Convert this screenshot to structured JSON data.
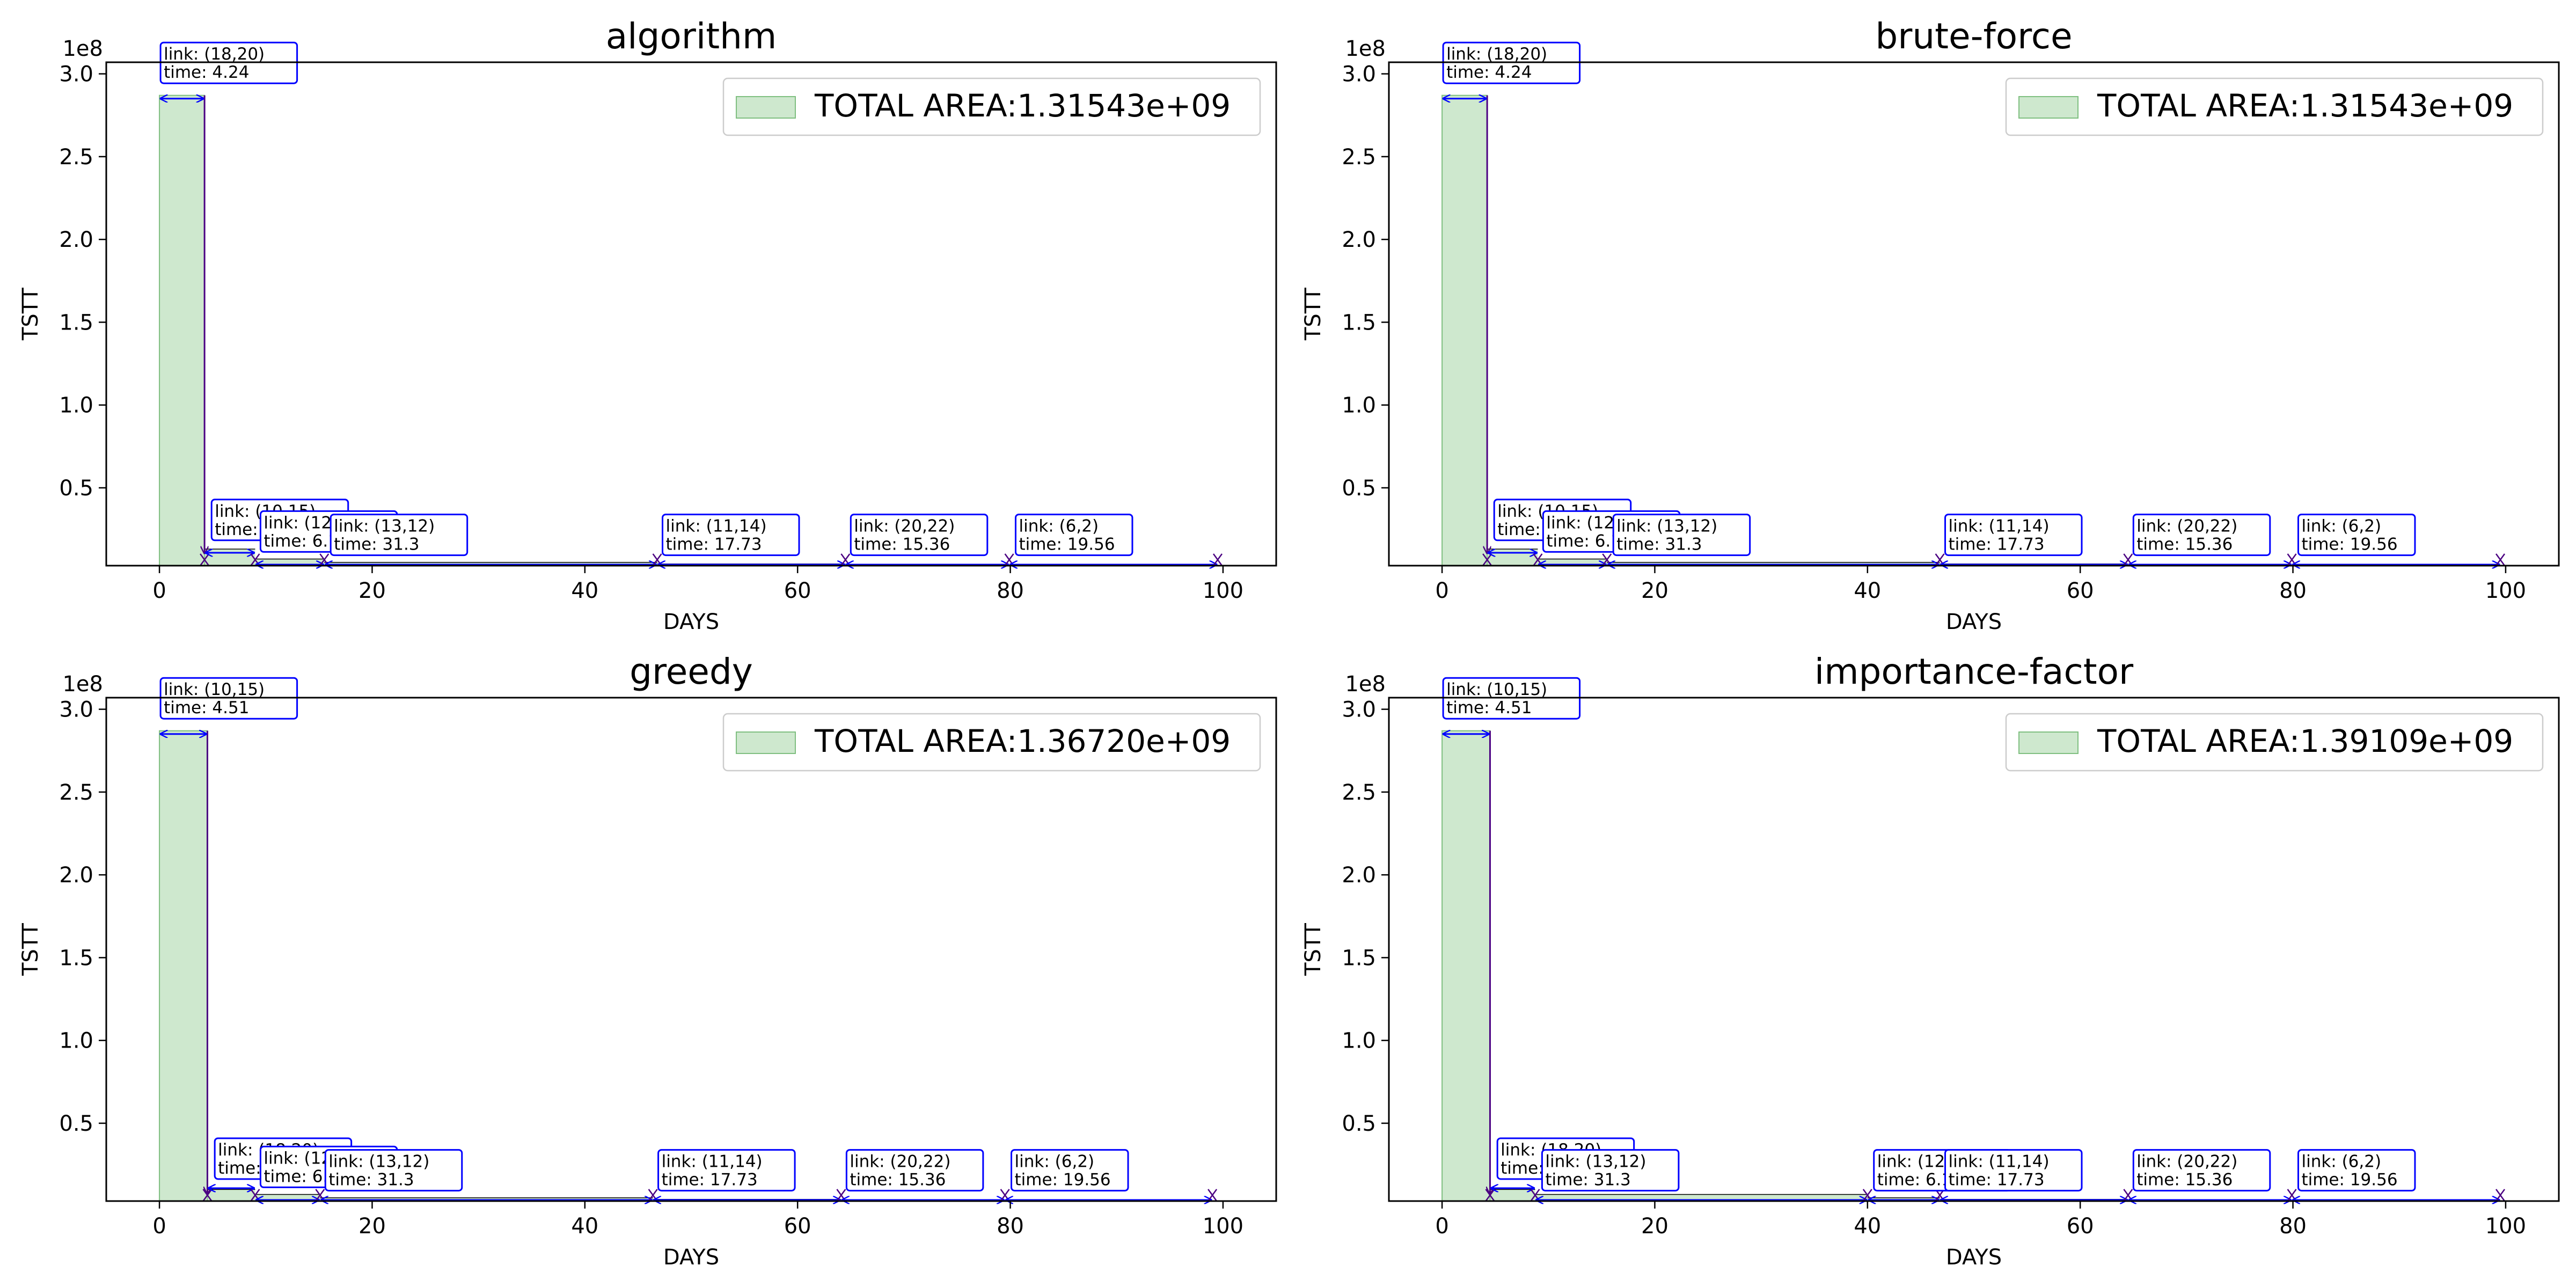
{
  "figure": {
    "background": "#ffffff"
  },
  "colors": {
    "fill": "#a5d5a6",
    "fill_opacity": 0.55,
    "fill_edge": "#7fbf80",
    "arrow": "#0000ff",
    "drop": "#4b0082",
    "box_edge": "#0000ff",
    "axis": "#000000"
  },
  "chart_data": [
    {
      "type": "area",
      "title": "algorithm",
      "xlabel": "DAYS",
      "ylabel": "TSTT",
      "offset_text": "1e8",
      "xlim": [
        -5,
        105
      ],
      "ylim": [
        0.03,
        3.07
      ],
      "xticks": [
        0,
        20,
        40,
        60,
        80,
        100
      ],
      "yticks": [
        0.5,
        1.0,
        1.5,
        2.0,
        2.5,
        3.0
      ],
      "xtick_labels": [
        "0",
        "20",
        "40",
        "60",
        "80",
        "100"
      ],
      "ytick_labels": [
        "0.5",
        "1.0",
        "1.5",
        "2.0",
        "2.5",
        "3.0"
      ],
      "legend": "TOTAL AREA:1.31543e+09",
      "legend_position": "upper right",
      "steps": [
        {
          "start": 0,
          "end": 4.24,
          "tstt": 2.87
        },
        {
          "start": 4.24,
          "end": 9.0,
          "tstt": 0.13
        },
        {
          "start": 9.0,
          "end": 15.5,
          "tstt": 0.07
        },
        {
          "start": 15.5,
          "end": 46.8,
          "tstt": 0.05
        },
        {
          "start": 46.8,
          "end": 64.5,
          "tstt": 0.04
        },
        {
          "start": 64.5,
          "end": 79.9,
          "tstt": 0.035
        },
        {
          "start": 79.9,
          "end": 99.5,
          "tstt": 0.03
        }
      ],
      "end_marker": 99.5,
      "annotations": [
        {
          "line1": "link: (18,20)",
          "line2": "time: 4.24",
          "x": 0,
          "y": 2.93
        },
        {
          "line1": "link: (10,15)",
          "line2": "time: 4.51",
          "x": 4.8,
          "y": 0.17
        },
        {
          "line1": "link: (12,17)",
          "line2": "time: 6.12",
          "x": 9.4,
          "y": 0.1
        },
        {
          "line1": "link: (13,12)",
          "line2": "time: 31.3",
          "x": 16.0,
          "y": 0.08
        },
        {
          "line1": "link: (11,14)",
          "line2": "time: 17.73",
          "x": 47.2,
          "y": 0.08
        },
        {
          "line1": "link: (20,22)",
          "line2": "time: 15.36",
          "x": 64.9,
          "y": 0.08
        },
        {
          "line1": "link: (6,2)",
          "line2": "time: 19.56",
          "x": 80.4,
          "y": 0.08
        }
      ]
    },
    {
      "type": "area",
      "title": "brute-force",
      "xlabel": "DAYS",
      "ylabel": "TSTT",
      "offset_text": "1e8",
      "xlim": [
        -5,
        105
      ],
      "ylim": [
        0.03,
        3.07
      ],
      "xticks": [
        0,
        20,
        40,
        60,
        80,
        100
      ],
      "yticks": [
        0.5,
        1.0,
        1.5,
        2.0,
        2.5,
        3.0
      ],
      "xtick_labels": [
        "0",
        "20",
        "40",
        "60",
        "80",
        "100"
      ],
      "ytick_labels": [
        "0.5",
        "1.0",
        "1.5",
        "2.0",
        "2.5",
        "3.0"
      ],
      "legend": "TOTAL AREA:1.31543e+09",
      "legend_position": "upper right",
      "steps": [
        {
          "start": 0,
          "end": 4.24,
          "tstt": 2.87
        },
        {
          "start": 4.24,
          "end": 9.0,
          "tstt": 0.13
        },
        {
          "start": 9.0,
          "end": 15.5,
          "tstt": 0.07
        },
        {
          "start": 15.5,
          "end": 46.8,
          "tstt": 0.05
        },
        {
          "start": 46.8,
          "end": 64.5,
          "tstt": 0.04
        },
        {
          "start": 64.5,
          "end": 79.9,
          "tstt": 0.035
        },
        {
          "start": 79.9,
          "end": 99.5,
          "tstt": 0.03
        }
      ],
      "end_marker": 99.5,
      "annotations": [
        {
          "line1": "link: (18,20)",
          "line2": "time: 4.24",
          "x": 0,
          "y": 2.93
        },
        {
          "line1": "link: (10,15)",
          "line2": "time: 4.51",
          "x": 4.8,
          "y": 0.17
        },
        {
          "line1": "link: (12,17)",
          "line2": "time: 6.12",
          "x": 9.4,
          "y": 0.1
        },
        {
          "line1": "link: (13,12)",
          "line2": "time: 31.3",
          "x": 16.0,
          "y": 0.08
        },
        {
          "line1": "link: (11,14)",
          "line2": "time: 17.73",
          "x": 47.2,
          "y": 0.08
        },
        {
          "line1": "link: (20,22)",
          "line2": "time: 15.36",
          "x": 64.9,
          "y": 0.08
        },
        {
          "line1": "link: (6,2)",
          "line2": "time: 19.56",
          "x": 80.4,
          "y": 0.08
        }
      ]
    },
    {
      "type": "area",
      "title": "greedy",
      "xlabel": "DAYS",
      "ylabel": "TSTT",
      "offset_text": "1e8",
      "xlim": [
        -5,
        105
      ],
      "ylim": [
        0.03,
        3.07
      ],
      "xticks": [
        0,
        20,
        40,
        60,
        80,
        100
      ],
      "yticks": [
        0.5,
        1.0,
        1.5,
        2.0,
        2.5,
        3.0
      ],
      "xtick_labels": [
        "0",
        "20",
        "40",
        "60",
        "80",
        "100"
      ],
      "ytick_labels": [
        "0.5",
        "1.0",
        "1.5",
        "2.0",
        "2.5",
        "3.0"
      ],
      "legend": "TOTAL AREA:1.36720e+09",
      "legend_position": "upper right",
      "steps": [
        {
          "start": 0,
          "end": 4.51,
          "tstt": 2.87
        },
        {
          "start": 4.51,
          "end": 9.0,
          "tstt": 0.1
        },
        {
          "start": 9.0,
          "end": 15.1,
          "tstt": 0.07
        },
        {
          "start": 15.1,
          "end": 46.4,
          "tstt": 0.05
        },
        {
          "start": 46.4,
          "end": 64.1,
          "tstt": 0.04
        },
        {
          "start": 64.1,
          "end": 79.5,
          "tstt": 0.035
        },
        {
          "start": 79.5,
          "end": 99.0,
          "tstt": 0.03
        }
      ],
      "end_marker": 99.0,
      "annotations": [
        {
          "line1": "link: (10,15)",
          "line2": "time: 4.51",
          "x": 0,
          "y": 2.93
        },
        {
          "line1": "link: (18,20)",
          "line2": "time: 4.24",
          "x": 5.1,
          "y": 0.15
        },
        {
          "line1": "link: (12,17)",
          "line2": "time: 6.12",
          "x": 9.4,
          "y": 0.1
        },
        {
          "line1": "link: (13,12)",
          "line2": "time: 31.3",
          "x": 15.5,
          "y": 0.08
        },
        {
          "line1": "link: (11,14)",
          "line2": "time: 17.73",
          "x": 46.8,
          "y": 0.08
        },
        {
          "line1": "link: (20,22)",
          "line2": "time: 15.36",
          "x": 64.5,
          "y": 0.08
        },
        {
          "line1": "link: (6,2)",
          "line2": "time: 19.56",
          "x": 80.0,
          "y": 0.08
        }
      ]
    },
    {
      "type": "area",
      "title": "importance-factor",
      "xlabel": "DAYS",
      "ylabel": "TSTT",
      "offset_text": "1e8",
      "xlim": [
        -5,
        105
      ],
      "ylim": [
        0.03,
        3.07
      ],
      "xticks": [
        0,
        20,
        40,
        60,
        80,
        100
      ],
      "yticks": [
        0.5,
        1.0,
        1.5,
        2.0,
        2.5,
        3.0
      ],
      "xtick_labels": [
        "0",
        "20",
        "40",
        "60",
        "80",
        "100"
      ],
      "ytick_labels": [
        "0.5",
        "1.0",
        "1.5",
        "2.0",
        "2.5",
        "3.0"
      ],
      "legend": "TOTAL AREA:1.39109e+09",
      "legend_position": "upper right",
      "steps": [
        {
          "start": 0,
          "end": 4.51,
          "tstt": 2.87
        },
        {
          "start": 4.51,
          "end": 8.75,
          "tstt": 0.1
        },
        {
          "start": 8.75,
          "end": 40.0,
          "tstt": 0.07
        },
        {
          "start": 40.0,
          "end": 46.8,
          "tstt": 0.05
        },
        {
          "start": 46.8,
          "end": 64.5,
          "tstt": 0.04
        },
        {
          "start": 64.5,
          "end": 79.9,
          "tstt": 0.035
        },
        {
          "start": 79.9,
          "end": 99.5,
          "tstt": 0.03
        }
      ],
      "end_marker": 99.5,
      "annotations": [
        {
          "line1": "link: (10,15)",
          "line2": "time: 4.51",
          "x": 0,
          "y": 2.93
        },
        {
          "line1": "link: (18,20)",
          "line2": "time: 4.24",
          "x": 5.1,
          "y": 0.15
        },
        {
          "line1": "link: (13,12)",
          "line2": "time: 31.3",
          "x": 9.3,
          "y": 0.08
        },
        {
          "line1": "link: (12,17)",
          "line2": "time: 6.12",
          "x": 40.5,
          "y": 0.08
        },
        {
          "line1": "link: (11,14)",
          "line2": "time: 17.73",
          "x": 47.2,
          "y": 0.08
        },
        {
          "line1": "link: (20,22)",
          "line2": "time: 15.36",
          "x": 64.9,
          "y": 0.08
        },
        {
          "line1": "link: (6,2)",
          "line2": "time: 19.56",
          "x": 80.4,
          "y": 0.08
        }
      ]
    }
  ]
}
